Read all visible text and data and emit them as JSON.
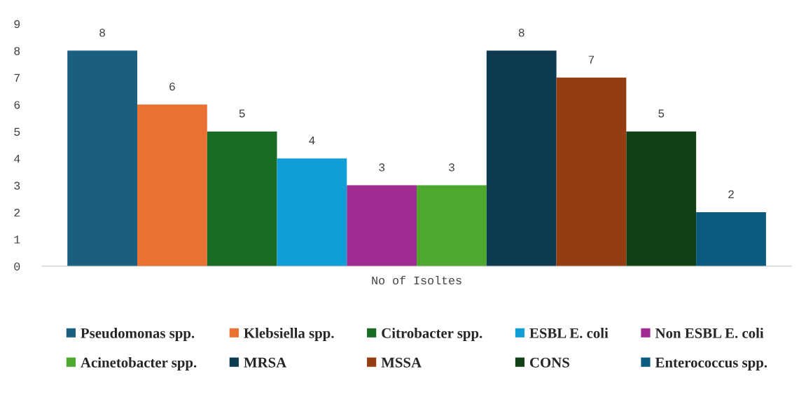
{
  "chart_data": {
    "type": "bar",
    "categories": [
      "No of Isoltes"
    ],
    "series": [
      {
        "name": "Pseudomonas spp.",
        "color": "#1a5e80",
        "values": [
          8
        ]
      },
      {
        "name": "Klebsiella spp.",
        "color": "#e97132",
        "values": [
          6
        ]
      },
      {
        "name": "Citrobacter spp.",
        "color": "#196b24",
        "values": [
          5
        ]
      },
      {
        "name": "ESBL E. coli",
        "color": "#0f9ed5",
        "values": [
          4
        ]
      },
      {
        "name": "Non ESBL E. coli",
        "color": "#a02b93",
        "values": [
          3
        ]
      },
      {
        "name": "Acinetobacter spp.",
        "color": "#4ea72e",
        "values": [
          3
        ]
      },
      {
        "name": "MRSA",
        "color": "#0e3b51",
        "values": [
          8
        ]
      },
      {
        "name": "MSSA",
        "color": "#953d11",
        "values": [
          7
        ]
      },
      {
        "name": "CONS",
        "color": "#124116",
        "values": [
          5
        ]
      },
      {
        "name": "Enterococcus spp.",
        "color": "#0b5a7f",
        "values": [
          2
        ]
      }
    ],
    "ylim": [
      0,
      9
    ],
    "yticks": [
      0,
      1,
      2,
      3,
      4,
      5,
      6,
      7,
      8,
      9
    ],
    "data_labels": true,
    "grid": false,
    "legend": "bottom"
  }
}
